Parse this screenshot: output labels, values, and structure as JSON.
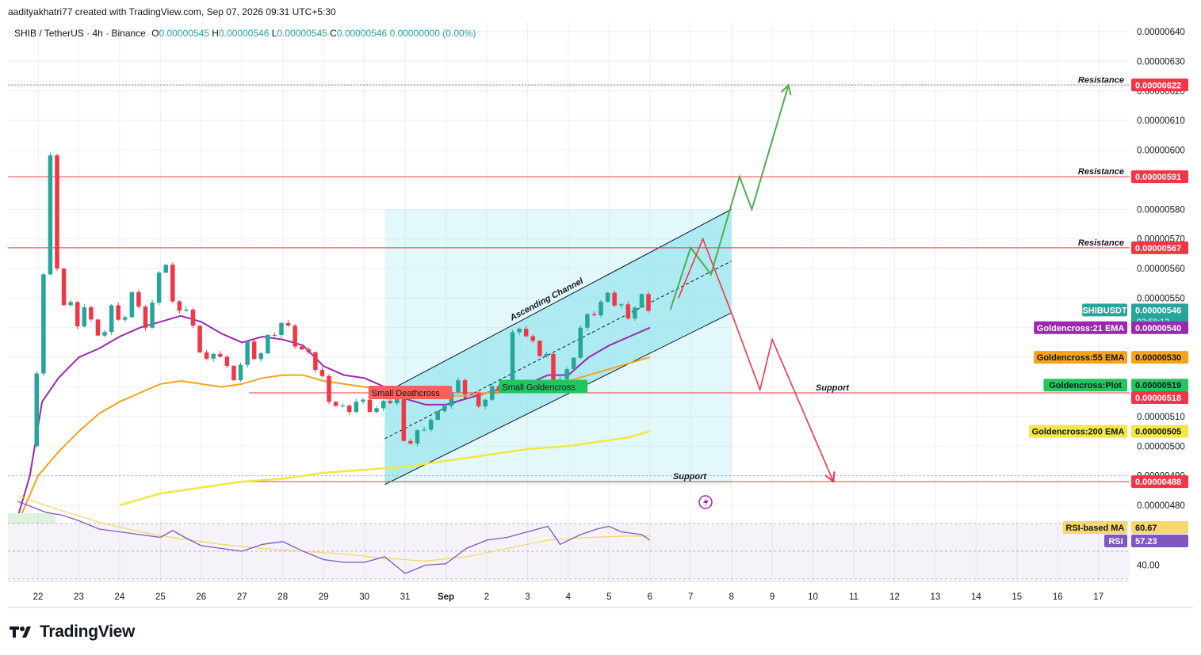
{
  "header": {
    "credit": "aadityakhatri77 created with TradingView.com, Sep 07, 2026 09:31 UTC+5:30",
    "symbol": "SHIB / TetherUS · 4h · Binance",
    "o_label": "O",
    "o_value": "0.00000545",
    "h_label": "H",
    "h_value": "0.00000546",
    "l_label": "L",
    "l_value": "0.00000545",
    "c_label": "C",
    "c_value": "0.00000546",
    "change": "0.00000000 (0.00%)"
  },
  "brand": {
    "name": "TradingView"
  },
  "colors": {
    "up": "#26a69a",
    "down": "#f23645",
    "ema21": "#9c27b0",
    "ema55": "#f7a21b",
    "ema200": "#f5e642",
    "channel_fill": "#9be6ee",
    "resistance": "#f23645",
    "support": "#f23645",
    "green_path": "#4caf50",
    "red_path": "#f23645",
    "rsi": "#7e57c2",
    "rsi_ma": "#f5d76e",
    "goldencross_plot": "#22c55e"
  },
  "chart_data": {
    "type": "candlestick",
    "x_labels": [
      "22",
      "23",
      "24",
      "25",
      "26",
      "27",
      "28",
      "29",
      "30",
      "31",
      "Sep",
      "2",
      "3",
      "4",
      "5",
      "6",
      "7",
      "8",
      "9",
      "10",
      "11",
      "12",
      "13",
      "14",
      "15",
      "16",
      "17"
    ],
    "y_ticks": [
      "0.00000640",
      "0.00000630",
      "0.00000620",
      "0.00000610",
      "0.00000600",
      "0.00000590",
      "0.00000580",
      "0.00000570",
      "0.00000560",
      "0.00000550",
      "0.00000540",
      "0.00000530",
      "0.00000520",
      "0.00000510",
      "0.00000500",
      "0.00000490",
      "0.00000480"
    ],
    "ylim": [
      4.77e-06,
      6.44e-06
    ],
    "close_path": [
      [
        21.8,
        5e-06
      ],
      [
        21.9,
        5.15e-06
      ],
      [
        22.0,
        5.3e-06
      ],
      [
        22.1,
        5.4e-06
      ],
      [
        22.2,
        5.9e-06
      ],
      [
        22.25,
        6.2e-06
      ],
      [
        22.3,
        6e-06
      ],
      [
        22.4,
        5.7e-06
      ],
      [
        22.5,
        5.55e-06
      ],
      [
        22.6,
        5.45e-06
      ],
      [
        22.8,
        5.5e-06
      ],
      [
        23.0,
        5.38e-06
      ],
      [
        23.2,
        5.48e-06
      ],
      [
        23.5,
        5.35e-06
      ],
      [
        23.8,
        5.48e-06
      ],
      [
        24.0,
        5.4e-06
      ],
      [
        24.3,
        5.52e-06
      ],
      [
        24.6,
        5.4e-06
      ],
      [
        24.9,
        5.52e-06
      ],
      [
        25.1,
        5.65e-06
      ],
      [
        25.3,
        5.48e-06
      ],
      [
        25.6,
        5.48e-06
      ],
      [
        25.9,
        5.35e-06
      ],
      [
        26.2,
        5.28e-06
      ],
      [
        26.5,
        5.32e-06
      ],
      [
        26.8,
        5.2e-06
      ],
      [
        27.1,
        5.35e-06
      ],
      [
        27.4,
        5.3e-06
      ],
      [
        27.7,
        5.38e-06
      ],
      [
        28.0,
        5.42e-06
      ],
      [
        28.3,
        5.35e-06
      ],
      [
        28.6,
        5.3e-06
      ],
      [
        28.9,
        5.25e-06
      ],
      [
        29.2,
        5.15e-06
      ],
      [
        29.5,
        5.12e-06
      ],
      [
        29.8,
        5.15e-06
      ],
      [
        30.1,
        5.13e-06
      ],
      [
        30.4,
        5.12e-06
      ],
      [
        30.6,
        5.15e-06
      ],
      [
        30.85,
        5.18e-06
      ],
      [
        31.0,
        5e-06
      ],
      [
        31.2,
        5.02e-06
      ],
      [
        31.5,
        5.08e-06
      ],
      [
        31.8,
        5.1e-06
      ],
      [
        32.0,
        5.16e-06
      ],
      [
        32.3,
        5.2e-06
      ],
      [
        32.6,
        5.17e-06
      ],
      [
        32.9,
        5.15e-06
      ],
      [
        33.2,
        5.2e-06
      ],
      [
        33.5,
        5.22e-06
      ],
      [
        33.7,
        5.44e-06
      ],
      [
        33.9,
        5.38e-06
      ],
      [
        34.2,
        5.32e-06
      ],
      [
        34.5,
        5.3e-06
      ],
      [
        34.7,
        5.22e-06
      ],
      [
        35.0,
        5.25e-06
      ],
      [
        35.3,
        5.4e-06
      ],
      [
        35.6,
        5.45e-06
      ],
      [
        35.9,
        5.5e-06
      ],
      [
        36.2,
        5.48e-06
      ],
      [
        36.5,
        5.45e-06
      ],
      [
        36.8,
        5.5e-06
      ],
      [
        37.0,
        5.47e-06
      ],
      [
        37.1,
        5.46e-06
      ]
    ],
    "series": [
      {
        "name": "Goldencross:21 EMA",
        "value": "0.00000540",
        "values": [
          [
            21.5,
            4.76e-06
          ],
          [
            21.8,
            4.9e-06
          ],
          [
            22.1,
            5.15e-06
          ],
          [
            22.5,
            5.23e-06
          ],
          [
            23.0,
            5.3e-06
          ],
          [
            23.5,
            5.33e-06
          ],
          [
            24.0,
            5.37e-06
          ],
          [
            24.5,
            5.4e-06
          ],
          [
            25.0,
            5.42e-06
          ],
          [
            25.5,
            5.44e-06
          ],
          [
            26.0,
            5.42e-06
          ],
          [
            26.5,
            5.38e-06
          ],
          [
            27.0,
            5.35e-06
          ],
          [
            27.5,
            5.37e-06
          ],
          [
            28.0,
            5.36e-06
          ],
          [
            28.5,
            5.34e-06
          ],
          [
            29.0,
            5.27e-06
          ],
          [
            29.5,
            5.24e-06
          ],
          [
            30.0,
            5.23e-06
          ],
          [
            30.5,
            5.2e-06
          ],
          [
            31.0,
            5.16e-06
          ],
          [
            31.5,
            5.14e-06
          ],
          [
            32.0,
            5.14e-06
          ],
          [
            32.5,
            5.16e-06
          ],
          [
            33.0,
            5.18e-06
          ],
          [
            33.5,
            5.2e-06
          ],
          [
            34.0,
            5.21e-06
          ],
          [
            34.5,
            5.24e-06
          ],
          [
            35.0,
            5.24e-06
          ],
          [
            35.5,
            5.3e-06
          ],
          [
            36.0,
            5.34e-06
          ],
          [
            36.5,
            5.37e-06
          ],
          [
            37.0,
            5.4e-06
          ]
        ]
      },
      {
        "name": "Goldencross:55 EMA",
        "value": "0.00000530",
        "values": [
          [
            21.6,
            4.77e-06
          ],
          [
            22.0,
            4.9e-06
          ],
          [
            22.5,
            4.98e-06
          ],
          [
            23.0,
            5.05e-06
          ],
          [
            23.5,
            5.11e-06
          ],
          [
            24.0,
            5.15e-06
          ],
          [
            24.5,
            5.18e-06
          ],
          [
            25.0,
            5.21e-06
          ],
          [
            25.5,
            5.22e-06
          ],
          [
            26.0,
            5.21e-06
          ],
          [
            26.5,
            5.2e-06
          ],
          [
            27.0,
            5.21e-06
          ],
          [
            27.5,
            5.23e-06
          ],
          [
            28.0,
            5.24e-06
          ],
          [
            28.5,
            5.24e-06
          ],
          [
            29.0,
            5.22e-06
          ],
          [
            29.5,
            5.21e-06
          ],
          [
            30.0,
            5.2e-06
          ],
          [
            30.5,
            5.19e-06
          ],
          [
            31.0,
            5.19e-06
          ],
          [
            31.5,
            5.18e-06
          ],
          [
            32.0,
            5.17e-06
          ],
          [
            32.5,
            5.17e-06
          ],
          [
            33.0,
            5.18e-06
          ],
          [
            33.5,
            5.19e-06
          ],
          [
            34.0,
            5.2e-06
          ],
          [
            34.5,
            5.21e-06
          ],
          [
            35.0,
            5.22e-06
          ],
          [
            35.5,
            5.24e-06
          ],
          [
            36.0,
            5.26e-06
          ],
          [
            36.5,
            5.28e-06
          ],
          [
            37.0,
            5.3e-06
          ]
        ]
      },
      {
        "name": "Goldencross:200 EMA",
        "value": "0.00000505",
        "values": [
          [
            24.0,
            4.8e-06
          ],
          [
            24.5,
            4.82e-06
          ],
          [
            25.0,
            4.84e-06
          ],
          [
            26.0,
            4.86e-06
          ],
          [
            27.0,
            4.88e-06
          ],
          [
            28.0,
            4.89e-06
          ],
          [
            29.0,
            4.91e-06
          ],
          [
            30.0,
            4.92e-06
          ],
          [
            31.0,
            4.93e-06
          ],
          [
            32.0,
            4.95e-06
          ],
          [
            33.0,
            4.97e-06
          ],
          [
            34.0,
            4.99e-06
          ],
          [
            35.0,
            5e-06
          ],
          [
            35.5,
            5.01e-06
          ],
          [
            36.0,
            5.02e-06
          ],
          [
            36.5,
            5.03e-06
          ],
          [
            37.0,
            5.05e-06
          ]
        ]
      }
    ],
    "price_tags": [
      {
        "label": "SHIBUSDT",
        "value": "0.00000546",
        "sub": "03:58:12",
        "price": 5.46e-06,
        "color": "#26a69a"
      },
      {
        "label": "Goldencross:21 EMA",
        "value": "0.00000540",
        "price": 5.4e-06,
        "color": "#9c27b0"
      },
      {
        "label": "Goldencross:55 EMA",
        "value": "0.00000530",
        "price": 5.3e-06,
        "color": "#f7a21b"
      },
      {
        "label": "Goldencross:Plot",
        "value": "0.00000519",
        "price": 5.19e-06,
        "color": "#22c55e"
      },
      {
        "label": "",
        "value": "0.00000518",
        "price": 5.18e-06,
        "color": "#f23645"
      },
      {
        "label": "Goldencross:200 EMA",
        "value": "0.00000505",
        "price": 5.05e-06,
        "color": "#f5e642"
      }
    ],
    "levels": [
      {
        "label": "Resistance",
        "value": "0.00000622",
        "price": 6.22e-06,
        "x0": 10,
        "dashed": true
      },
      {
        "label": "Resistance",
        "value": "0.00000591",
        "price": 5.91e-06,
        "x0": 10,
        "dashed": false
      },
      {
        "label": "Resistance",
        "value": "0.00000567",
        "price": 5.67e-06,
        "x0": 10,
        "dashed": false
      },
      {
        "label": "Support",
        "value": "0.00000518",
        "price": 5.18e-06,
        "x0": 314,
        "dashed": false
      },
      {
        "label": "Support",
        "value": "0.00000488",
        "price": 4.88e-06,
        "x0": 314,
        "dashed": false
      }
    ],
    "annotations": {
      "channel": "Ascending Channel",
      "small_deathcross": "Small Deathcross",
      "small_goldencross": "Small Goldencross"
    },
    "projection_green": [
      [
        37.5,
        5.46e-06
      ],
      [
        38.0,
        5.67e-06
      ],
      [
        38.5,
        5.58e-06
      ],
      [
        39.2,
        5.91e-06
      ],
      [
        39.5,
        5.8e-06
      ],
      [
        40.4,
        6.22e-06
      ]
    ],
    "projection_red": [
      [
        37.7,
        5.5e-06
      ],
      [
        38.3,
        5.7e-06
      ],
      [
        39.0,
        5.45e-06
      ],
      [
        39.7,
        5.19e-06
      ],
      [
        40.0,
        5.36e-06
      ],
      [
        41.5,
        4.88e-06
      ]
    ],
    "channel_box": {
      "x": [
        30.5,
        39.0
      ],
      "upper": [
        5.18e-06,
        5.8e-06
      ],
      "lower": [
        4.87e-06,
        5.45e-06
      ]
    },
    "rsi": {
      "label": "RSI",
      "value": "57.23",
      "ma_label": "RSI-based MA",
      "ma_value": "60.67",
      "tick": "40.00",
      "values": [
        [
          21.5,
          86
        ],
        [
          22.2,
          78
        ],
        [
          22.6,
          76
        ],
        [
          23.0,
          72
        ],
        [
          23.5,
          66
        ],
        [
          24.0,
          64
        ],
        [
          24.5,
          62
        ],
        [
          25.0,
          60
        ],
        [
          25.3,
          65
        ],
        [
          25.6,
          60
        ],
        [
          26.0,
          54
        ],
        [
          26.5,
          52
        ],
        [
          27.0,
          50
        ],
        [
          27.5,
          55
        ],
        [
          28.0,
          57
        ],
        [
          28.5,
          50
        ],
        [
          29.0,
          44
        ],
        [
          29.5,
          42
        ],
        [
          30.0,
          42
        ],
        [
          30.5,
          46
        ],
        [
          31.0,
          34
        ],
        [
          31.5,
          40
        ],
        [
          32.0,
          41
        ],
        [
          32.5,
          52
        ],
        [
          33.0,
          58
        ],
        [
          33.5,
          60
        ],
        [
          34.0,
          64
        ],
        [
          34.5,
          68
        ],
        [
          34.8,
          55
        ],
        [
          35.3,
          62
        ],
        [
          35.7,
          66
        ],
        [
          36.0,
          68
        ],
        [
          36.3,
          64
        ],
        [
          36.8,
          62
        ],
        [
          37.0,
          58
        ]
      ],
      "ma_values": [
        [
          21.5,
          90
        ],
        [
          22.5,
          80
        ],
        [
          23.5,
          71
        ],
        [
          24.5,
          64
        ],
        [
          25.5,
          59
        ],
        [
          26.5,
          55
        ],
        [
          27.5,
          52
        ],
        [
          28.5,
          50
        ],
        [
          29.5,
          48
        ],
        [
          30.5,
          45
        ],
        [
          31.5,
          43
        ],
        [
          32.5,
          46
        ],
        [
          33.5,
          52
        ],
        [
          34.5,
          58
        ],
        [
          35.5,
          60
        ],
        [
          36.5,
          61
        ],
        [
          37.0,
          61
        ]
      ]
    }
  }
}
